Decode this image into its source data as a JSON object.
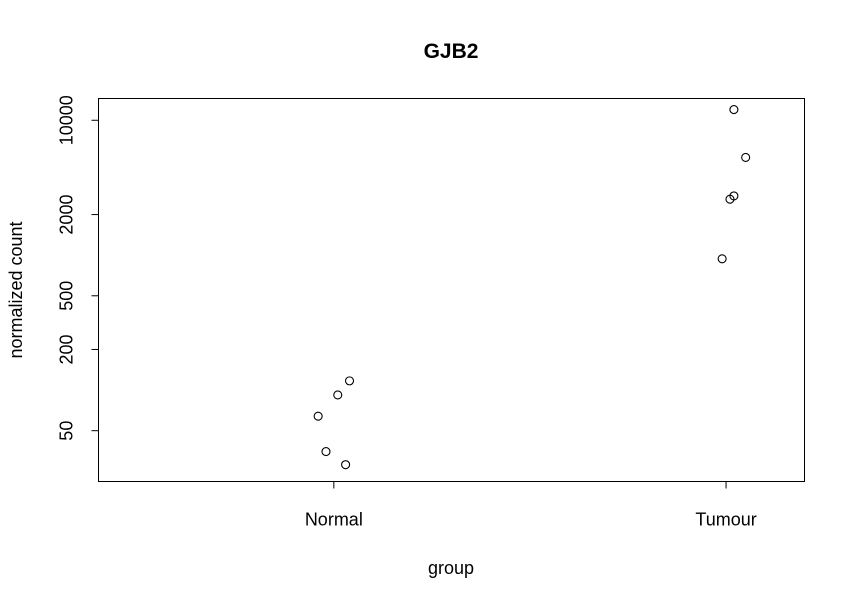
{
  "chart_data": {
    "type": "scatter",
    "title": "GJB2",
    "xlabel": "group",
    "ylabel": "normalized count",
    "categories": [
      "Normal",
      "Tumour"
    ],
    "y_scale": "log",
    "ylim": [
      21,
      14500
    ],
    "y_ticks": [
      50,
      200,
      500,
      2000,
      10000
    ],
    "y_tick_labels": [
      "50",
      "200",
      "500",
      "2000",
      "10000"
    ],
    "grid": false,
    "legend": "none",
    "points": [
      {
        "category": "Normal",
        "jitter": 0.04,
        "y": 117
      },
      {
        "category": "Normal",
        "jitter": 0.01,
        "y": 92
      },
      {
        "category": "Normal",
        "jitter": -0.04,
        "y": 64
      },
      {
        "category": "Normal",
        "jitter": -0.02,
        "y": 35
      },
      {
        "category": "Normal",
        "jitter": 0.03,
        "y": 28
      },
      {
        "category": "Tumour",
        "jitter": 0.02,
        "y": 12000
      },
      {
        "category": "Tumour",
        "jitter": 0.05,
        "y": 5300
      },
      {
        "category": "Tumour",
        "jitter": 0.02,
        "y": 2750
      },
      {
        "category": "Tumour",
        "jitter": 0.01,
        "y": 2600
      },
      {
        "category": "Tumour",
        "jitter": -0.01,
        "y": 940
      }
    ]
  }
}
